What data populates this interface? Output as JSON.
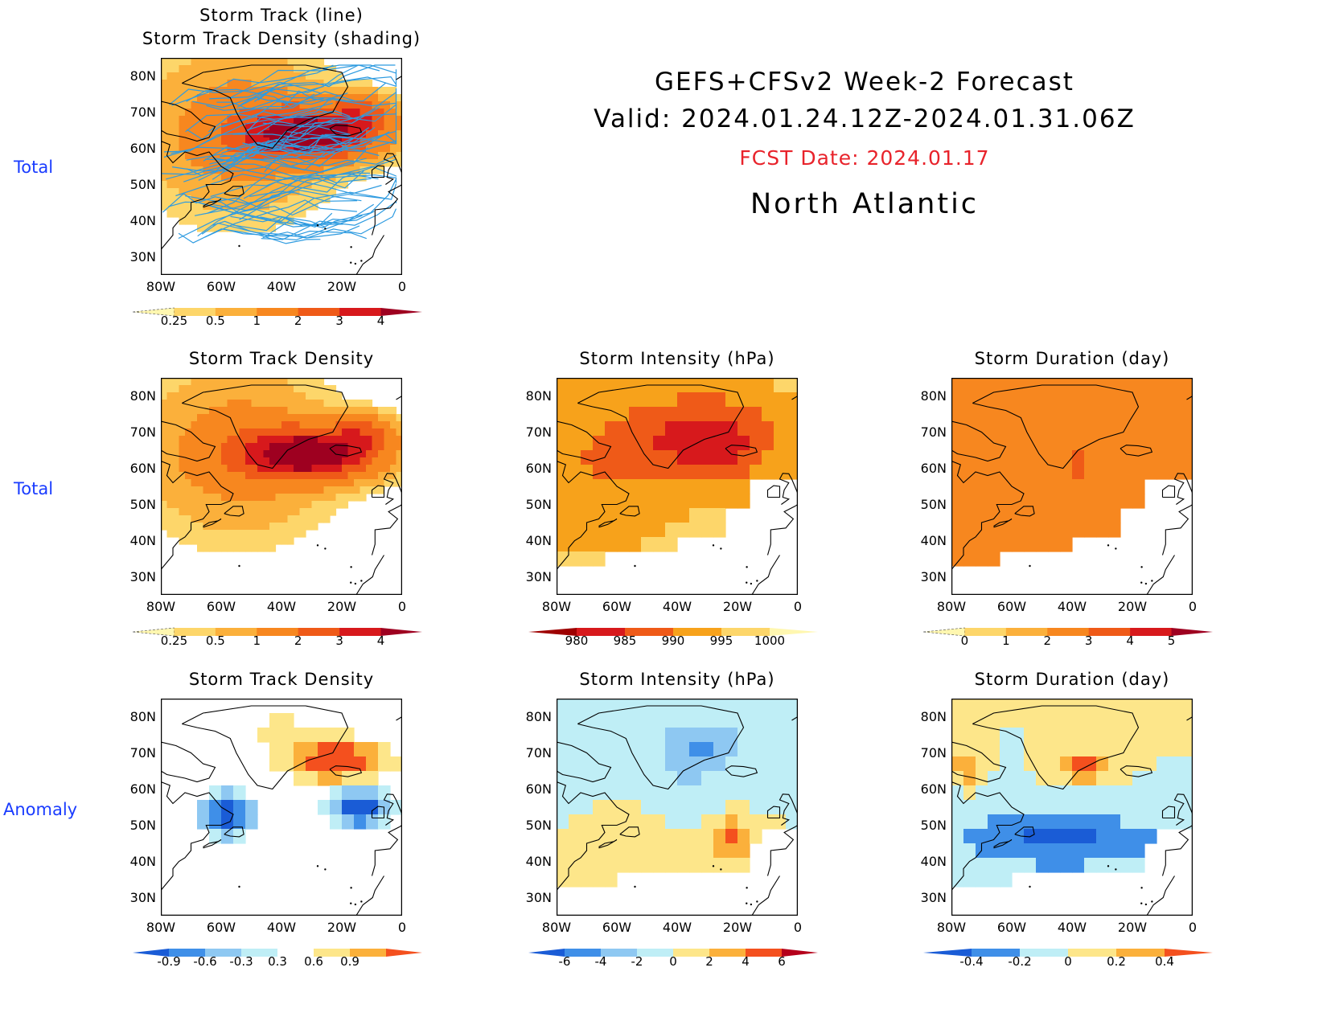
{
  "header": {
    "line1": "GEFS+CFSv2 Week-2 Forecast",
    "line2": "Valid: 2024.01.24.12Z-2024.01.31.06Z",
    "fcst": "FCST Date: 2024.01.17",
    "region": "North Atlantic"
  },
  "row_labels": [
    "Total",
    "Total",
    "Anomaly"
  ],
  "axes": {
    "lat": [
      "80N",
      "70N",
      "60N",
      "50N",
      "40N",
      "30N"
    ],
    "lon": [
      "80W",
      "60W",
      "40W",
      "20W",
      "0"
    ]
  },
  "panels": [
    {
      "id": "p1",
      "title_lines": [
        "Storm Track (line)",
        "Storm Track Density (shading)"
      ],
      "colorbar": {
        "labels": [
          "0.25",
          "0.5",
          "1",
          "2",
          "3",
          "4"
        ],
        "colors": [
          "#fff7b0",
          "#fdd66a",
          "#fbb03b",
          "#f7871f",
          "#ef5a18",
          "#d7191c",
          "#9e0020"
        ]
      },
      "field": "density"
    },
    {
      "id": "p2",
      "title_lines": [
        "Storm Track Density"
      ],
      "colorbar": {
        "labels": [
          "0.25",
          "0.5",
          "1",
          "2",
          "3",
          "4"
        ],
        "colors": [
          "#fff7b0",
          "#fdd66a",
          "#fbb03b",
          "#f7871f",
          "#ef5a18",
          "#d7191c",
          "#9e0020"
        ]
      },
      "field": "density"
    },
    {
      "id": "p3",
      "title_lines": [
        "Storm Intensity (hPa)"
      ],
      "colorbar": {
        "labels": [
          "980",
          "985",
          "990",
          "995",
          "1000"
        ],
        "colors": [
          "#9e0000",
          "#d7191c",
          "#ef5a18",
          "#f7a21b",
          "#fdd66a",
          "#fff7b0"
        ]
      },
      "field": "intensity"
    },
    {
      "id": "p4",
      "title_lines": [
        "Storm Duration (day)"
      ],
      "colorbar": {
        "labels": [
          "0",
          "1",
          "2",
          "3",
          "4",
          "5"
        ],
        "colors": [
          "#fff7b0",
          "#fdd66a",
          "#fbb03b",
          "#f7871f",
          "#ef5a18",
          "#d7191c",
          "#9e0020"
        ]
      },
      "field": "duration"
    },
    {
      "id": "p5",
      "title_lines": [
        "Storm Track Density"
      ],
      "colorbar": {
        "labels": [
          "-0.9",
          "-0.6",
          "-0.3",
          "0.3",
          "0.6",
          "0.9"
        ],
        "colors": [
          "#1a5cd6",
          "#3f8fe8",
          "#8ec8f2",
          "#bfeef6",
          "#ffffff",
          "#fde68a",
          "#fbb03b",
          "#f4501e"
        ]
      },
      "field": "anom_density"
    },
    {
      "id": "p6",
      "title_lines": [
        "Storm Intensity (hPa)"
      ],
      "colorbar": {
        "labels": [
          "-6",
          "-4",
          "-2",
          "0",
          "2",
          "4",
          "6"
        ],
        "colors": [
          "#1a5cd6",
          "#3f8fe8",
          "#8ec8f2",
          "#bfeef6",
          "#fde68a",
          "#fbb03b",
          "#f4501e",
          "#b5001b"
        ]
      },
      "field": "anom_intensity"
    },
    {
      "id": "p7",
      "title_lines": [
        "Storm Duration (day)"
      ],
      "colorbar": {
        "labels": [
          "-0.4",
          "-0.2",
          "0",
          "0.2",
          "0.4"
        ],
        "colors": [
          "#1a5cd6",
          "#3f8fe8",
          "#bfeef6",
          "#fde68a",
          "#fbb03b",
          "#f4501e"
        ]
      },
      "field": "anom_duration"
    }
  ]
}
